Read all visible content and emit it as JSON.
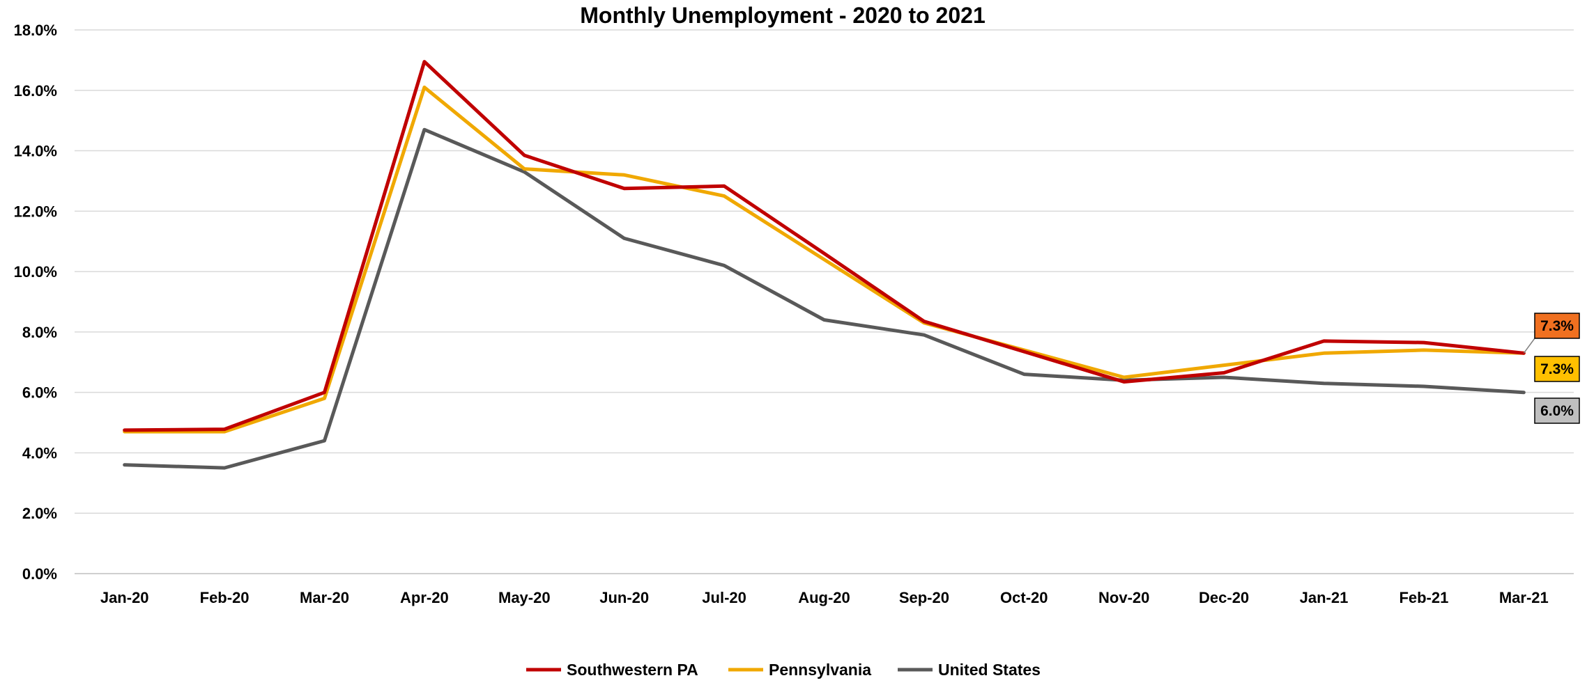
{
  "chart_data": {
    "type": "line",
    "title": "Monthly Unemployment - 2020 to 2021",
    "xlabel": "",
    "ylabel": "",
    "categories": [
      "Jan-20",
      "Feb-20",
      "Mar-20",
      "Apr-20",
      "May-20",
      "Jun-20",
      "Jul-20",
      "Aug-20",
      "Sep-20",
      "Oct-20",
      "Nov-20",
      "Dec-20",
      "Jan-21",
      "Feb-21",
      "Mar-21"
    ],
    "ylim": [
      0,
      18
    ],
    "y_ticks": [
      0,
      2,
      4,
      6,
      8,
      10,
      12,
      14,
      16,
      18
    ],
    "y_tick_labels": [
      "0.0%",
      "2.0%",
      "4.0%",
      "6.0%",
      "8.0%",
      "10.0%",
      "12.0%",
      "14.0%",
      "16.0%",
      "18.0%"
    ],
    "grid": true,
    "legend_position": "bottom",
    "series": [
      {
        "name": "Southwestern PA",
        "color": "#C00000",
        "values": [
          4.75,
          4.78,
          6.0,
          16.95,
          13.85,
          12.75,
          12.83,
          10.6,
          8.35,
          7.35,
          6.35,
          6.65,
          7.7,
          7.65,
          7.3
        ]
      },
      {
        "name": "Pennsylvania",
        "color": "#F0A800",
        "values": [
          4.7,
          4.7,
          5.8,
          16.1,
          13.4,
          13.2,
          12.5,
          10.4,
          8.3,
          7.4,
          6.5,
          6.9,
          7.3,
          7.4,
          7.3
        ]
      },
      {
        "name": "United States",
        "color": "#595959",
        "values": [
          3.6,
          3.5,
          4.4,
          14.7,
          13.3,
          11.1,
          10.2,
          8.4,
          7.9,
          6.6,
          6.4,
          6.5,
          6.3,
          6.2,
          6.0
        ]
      }
    ],
    "end_labels": [
      {
        "series": "Southwestern PA",
        "text": "7.3%",
        "fill": "#F07020"
      },
      {
        "series": "Pennsylvania",
        "text": "7.3%",
        "fill": "#FFC000"
      },
      {
        "series": "United States",
        "text": "6.0%",
        "fill": "#BFBFBF"
      }
    ]
  }
}
